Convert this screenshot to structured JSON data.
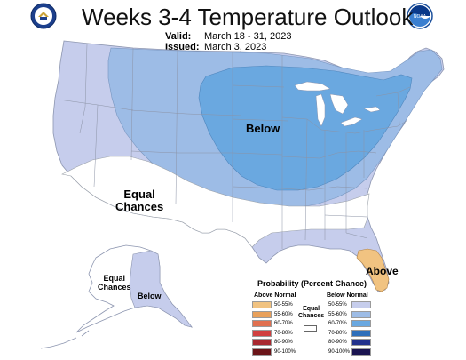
{
  "header": {
    "title": "Weeks 3-4 Temperature Outlook",
    "valid_label": "Valid:",
    "valid_value": "March 18 - 31, 2023",
    "issued_label": "Issued:",
    "issued_value": "March 3, 2023"
  },
  "colors": {
    "below_50_55": "#c6cdec",
    "below_55_60": "#9dbce6",
    "below_60_70": "#6aa8e0",
    "below_70_80": "#2e6fba",
    "below_80_90": "#22318c",
    "below_90_100": "#1a1450",
    "above_50_55": "#f1c381",
    "above_55_60": "#e8a05a",
    "above_60_70": "#e07050",
    "above_70_80": "#d04040",
    "above_80_90": "#a82830",
    "above_90_100": "#6a1418",
    "equal": "#ffffff",
    "boundary": "#9aa0a8"
  },
  "map_labels": {
    "below_main": "Below",
    "equal_west_line1": "Equal",
    "equal_west_line2": "Chances",
    "above_florida": "Above",
    "alaska_equal_line1": "Equal",
    "alaska_equal_line2": "Chances",
    "alaska_below": "Below"
  },
  "legend": {
    "title": "Probability (Percent Chance)",
    "above_header": "Above Normal",
    "below_header": "Below Normal",
    "equal_line1": "Equal",
    "equal_line2": "Chances",
    "above_items": [
      {
        "label": "50-55%",
        "color": "#f1c381"
      },
      {
        "label": "55-60%",
        "color": "#e8a05a"
      },
      {
        "label": "60-70%",
        "color": "#e07050"
      },
      {
        "label": "70-80%",
        "color": "#d04040"
      },
      {
        "label": "80-90%",
        "color": "#a82830"
      },
      {
        "label": "90-100%",
        "color": "#6a1418"
      }
    ],
    "below_items": [
      {
        "label": "50-55%",
        "color": "#c6cdec"
      },
      {
        "label": "55-60%",
        "color": "#9dbce6"
      },
      {
        "label": "60-70%",
        "color": "#6aa8e0"
      },
      {
        "label": "70-80%",
        "color": "#2e6fba"
      },
      {
        "label": "80-90%",
        "color": "#22318c"
      },
      {
        "label": "90-100%",
        "color": "#1a1450"
      }
    ]
  },
  "logos": {
    "left": "department-of-commerce-seal",
    "right": "noaa-logo",
    "right_text": "NOAA"
  }
}
